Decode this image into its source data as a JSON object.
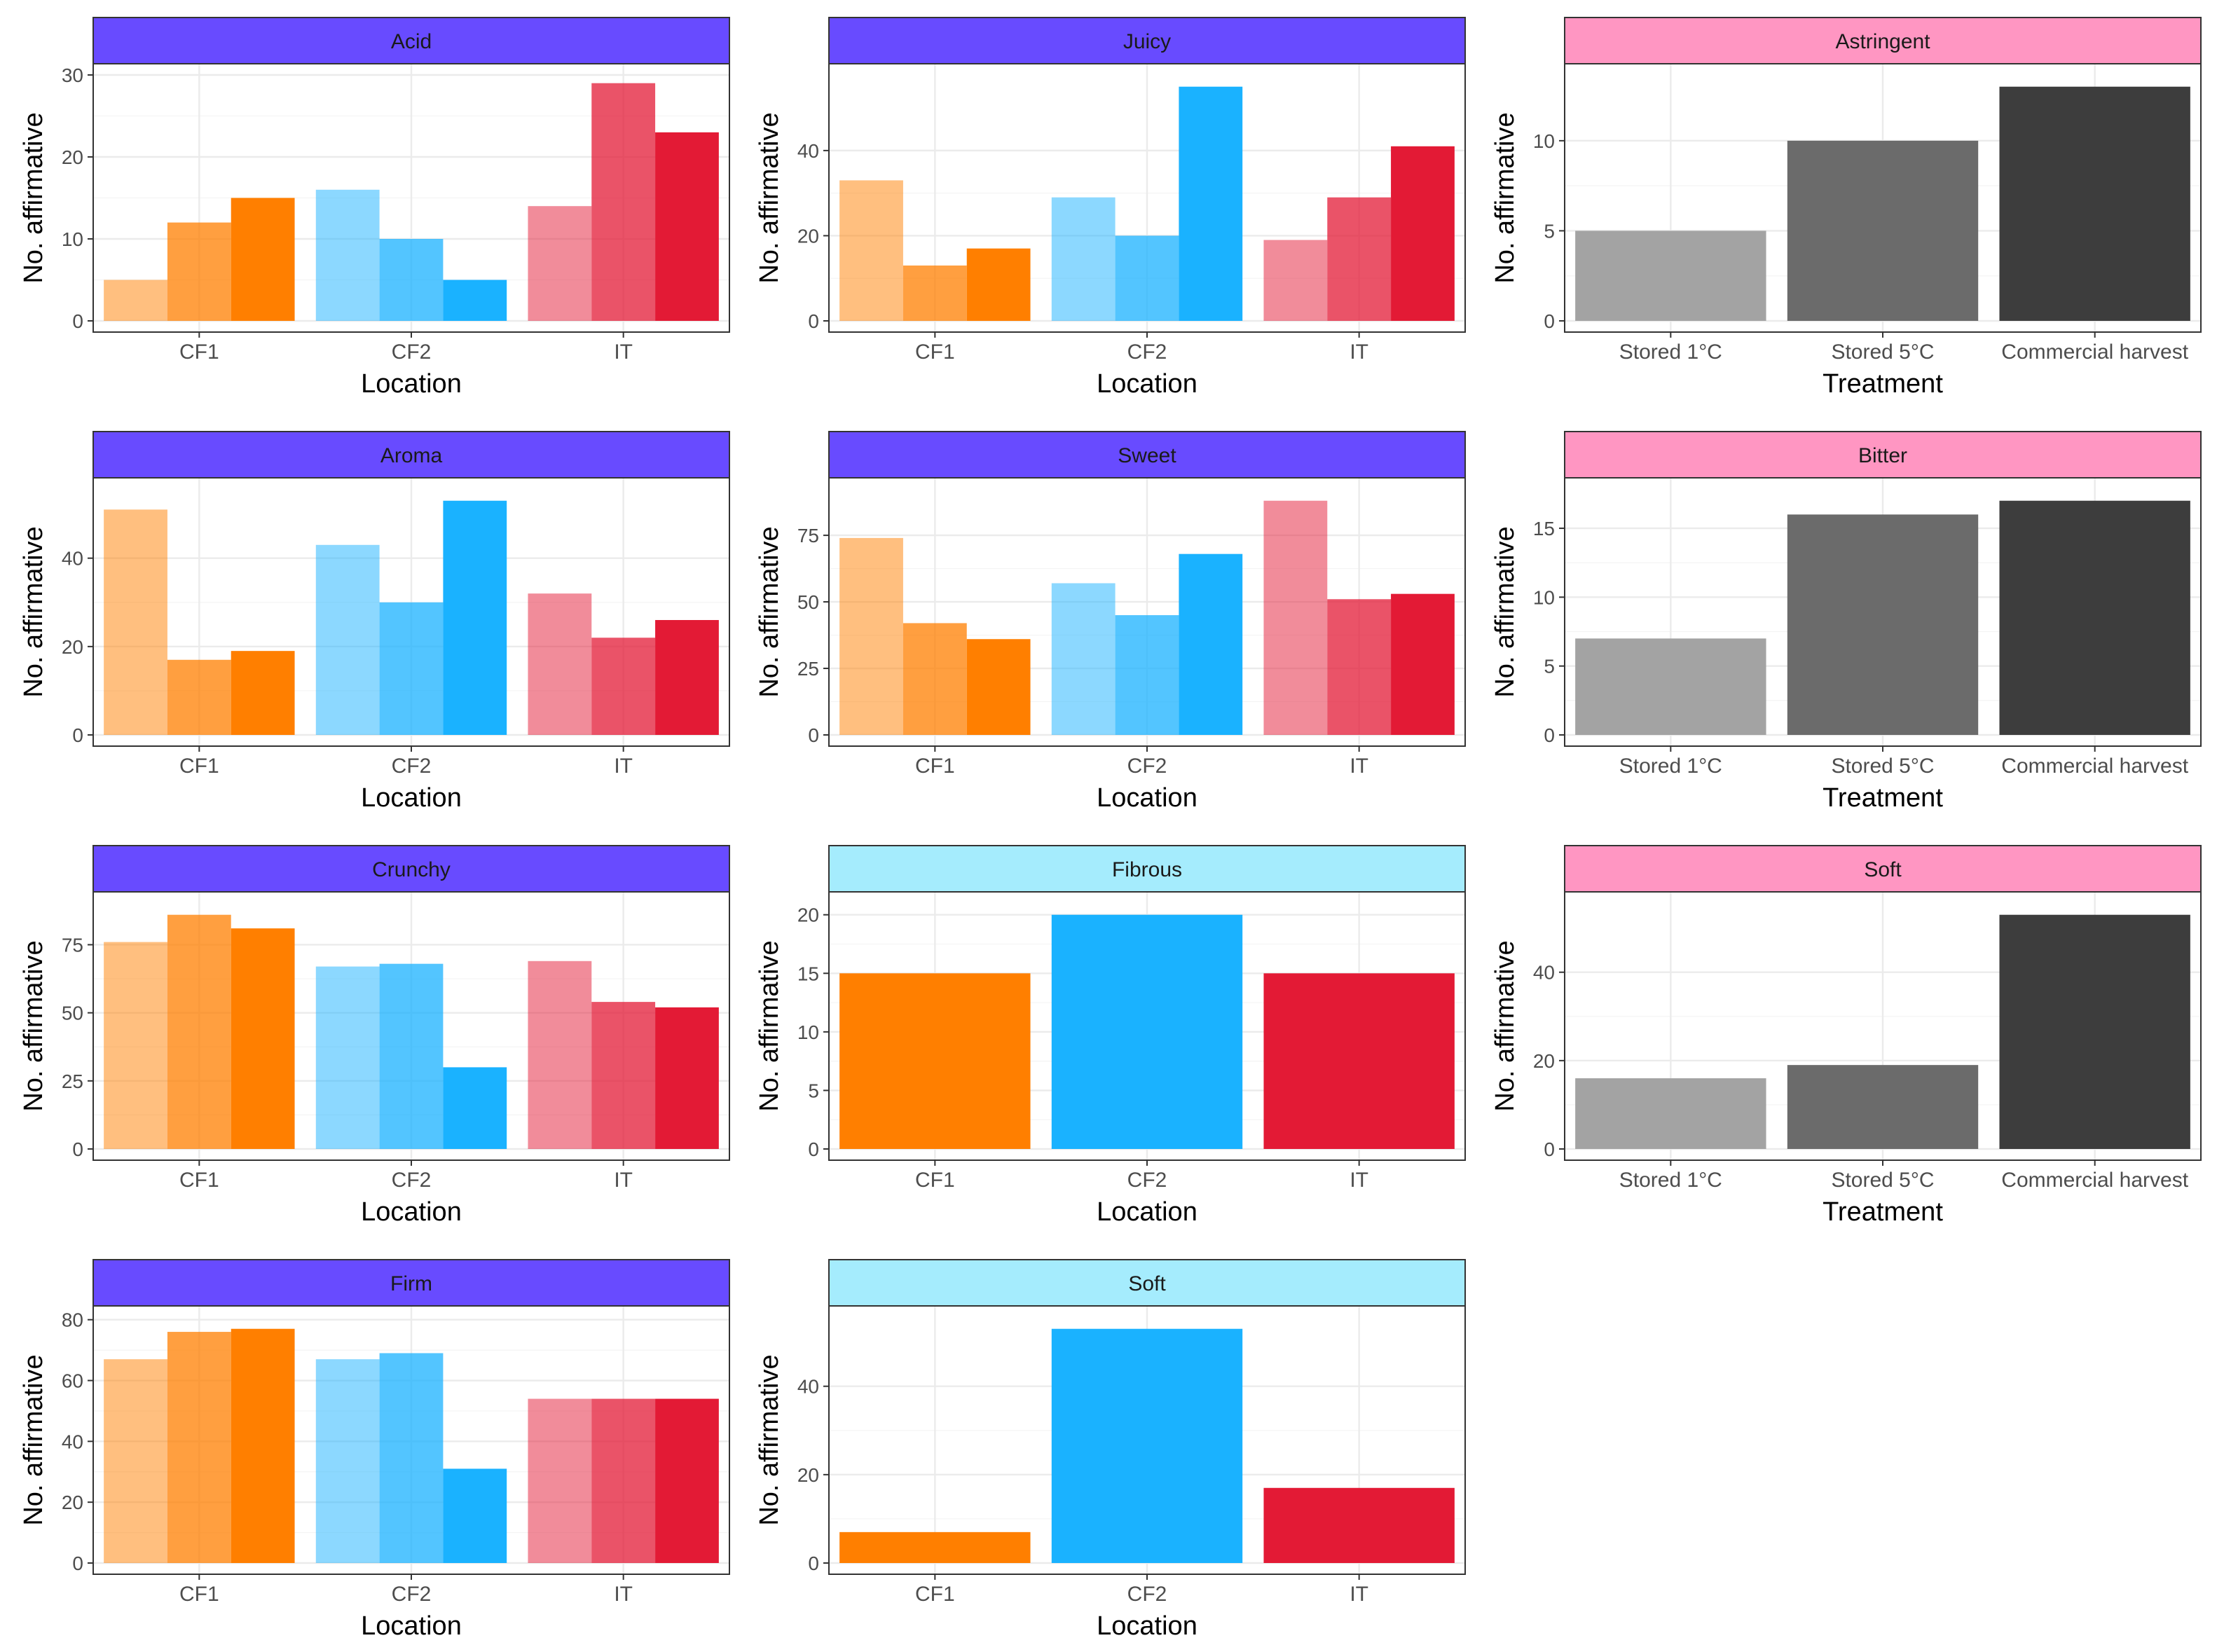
{
  "figure": {
    "axis_label_y": "No. affirmative",
    "axis_label_location": "Location",
    "axis_label_treatment": "Treatment",
    "colors": {
      "strip_location": "#684bff",
      "strip_fibrous_soft": "#a5ecfd",
      "strip_treatment": "#ff96c2",
      "CF1": "#ff7f00",
      "CF2": "#1ab2ff",
      "IT": "#e31a35",
      "t1": "#a3a3a3",
      "t2": "#6b6b6b",
      "t3": "#3d3d3d",
      "grid": "#ebebeb",
      "border": "#333333"
    }
  },
  "chart_data": [
    {
      "type": "bar",
      "title": "Acid",
      "strip": "location",
      "xlabel": "Location",
      "ylabel": "No. affirmative",
      "categories": [
        "CF1",
        "CF2",
        "IT"
      ],
      "groups": 3,
      "values": [
        [
          5,
          12,
          15
        ],
        [
          16,
          10,
          5
        ],
        [
          14,
          29,
          23
        ]
      ],
      "ylim": [
        0,
        30
      ],
      "yticks": [
        0,
        10,
        20,
        30
      ]
    },
    {
      "type": "bar",
      "title": "Juicy",
      "strip": "location",
      "xlabel": "Location",
      "ylabel": "No. affirmative",
      "categories": [
        "CF1",
        "CF2",
        "IT"
      ],
      "groups": 3,
      "values": [
        [
          33,
          13,
          17
        ],
        [
          29,
          20,
          55
        ],
        [
          19,
          29,
          41
        ]
      ],
      "ylim": [
        0,
        57.75
      ],
      "yticks": [
        0,
        20,
        40
      ]
    },
    {
      "type": "bar",
      "title": "Astringent",
      "strip": "treatment",
      "xlabel": "Treatment",
      "ylabel": "No. affirmative",
      "categories": [
        "Stored 1°C",
        "Stored 5°C",
        "Commercial harvest"
      ],
      "values": [
        5,
        10,
        13
      ],
      "ylim": [
        0,
        13.65
      ],
      "yticks": [
        0,
        5,
        10
      ]
    },
    {
      "type": "bar",
      "title": "Aroma",
      "strip": "location",
      "xlabel": "Location",
      "ylabel": "No. affirmative",
      "categories": [
        "CF1",
        "CF2",
        "IT"
      ],
      "groups": 3,
      "values": [
        [
          51,
          17,
          19
        ],
        [
          43,
          30,
          53
        ],
        [
          32,
          22,
          26
        ]
      ],
      "ylim": [
        0,
        55.65
      ],
      "yticks": [
        0,
        20,
        40
      ]
    },
    {
      "type": "bar",
      "title": "Sweet",
      "strip": "location",
      "xlabel": "Location",
      "ylabel": "No. affirmative",
      "categories": [
        "CF1",
        "CF2",
        "IT"
      ],
      "groups": 3,
      "values": [
        [
          74,
          42,
          36
        ],
        [
          57,
          45,
          68
        ],
        [
          88,
          51,
          53
        ]
      ],
      "ylim": [
        0,
        92.4
      ],
      "yticks": [
        0,
        25,
        50,
        75
      ]
    },
    {
      "type": "bar",
      "title": "Bitter",
      "strip": "treatment",
      "xlabel": "Treatment",
      "ylabel": "No. affirmative",
      "categories": [
        "Stored 1°C",
        "Stored 5°C",
        "Commercial harvest"
      ],
      "values": [
        7,
        16,
        17
      ],
      "ylim": [
        0,
        17.85
      ],
      "yticks": [
        0,
        5,
        10,
        15
      ]
    },
    {
      "type": "bar",
      "title": "Crunchy",
      "strip": "location",
      "xlabel": "Location",
      "ylabel": "No. affirmative",
      "categories": [
        "CF1",
        "CF2",
        "IT"
      ],
      "groups": 3,
      "values": [
        [
          76,
          86,
          81
        ],
        [
          67,
          68,
          30
        ],
        [
          69,
          54,
          52
        ]
      ],
      "ylim": [
        0,
        90.3
      ],
      "yticks": [
        0,
        25,
        50,
        75
      ]
    },
    {
      "type": "bar",
      "title": "Fibrous",
      "strip": "fibrous_soft",
      "xlabel": "Location",
      "ylabel": "No. affirmative",
      "categories": [
        "CF1",
        "CF2",
        "IT"
      ],
      "values": [
        15,
        20,
        15
      ],
      "ylim": [
        0,
        21
      ],
      "yticks": [
        0,
        5,
        10,
        15,
        20
      ]
    },
    {
      "type": "bar",
      "title": "Soft",
      "strip": "treatment",
      "xlabel": "Treatment",
      "ylabel": "No. affirmative",
      "categories": [
        "Stored 1°C",
        "Stored 5°C",
        "Commercial harvest"
      ],
      "values": [
        16,
        19,
        53
      ],
      "ylim": [
        0,
        55.65
      ],
      "yticks": [
        0,
        20,
        40
      ]
    },
    {
      "type": "bar",
      "title": "Firm",
      "strip": "location",
      "xlabel": "Location",
      "ylabel": "No. affirmative",
      "categories": [
        "CF1",
        "CF2",
        "IT"
      ],
      "groups": 3,
      "values": [
        [
          67,
          76,
          77
        ],
        [
          67,
          69,
          31
        ],
        [
          54,
          54,
          54
        ]
      ],
      "ylim": [
        0,
        80.85
      ],
      "yticks": [
        0,
        20,
        40,
        60,
        80
      ]
    },
    {
      "type": "bar",
      "title": "Soft",
      "strip": "fibrous_soft",
      "xlabel": "Location",
      "ylabel": "No. affirmative",
      "categories": [
        "CF1",
        "CF2",
        "IT"
      ],
      "values": [
        7,
        53,
        17
      ],
      "ylim": [
        0,
        55.65
      ],
      "yticks": [
        0,
        20,
        40
      ]
    }
  ]
}
